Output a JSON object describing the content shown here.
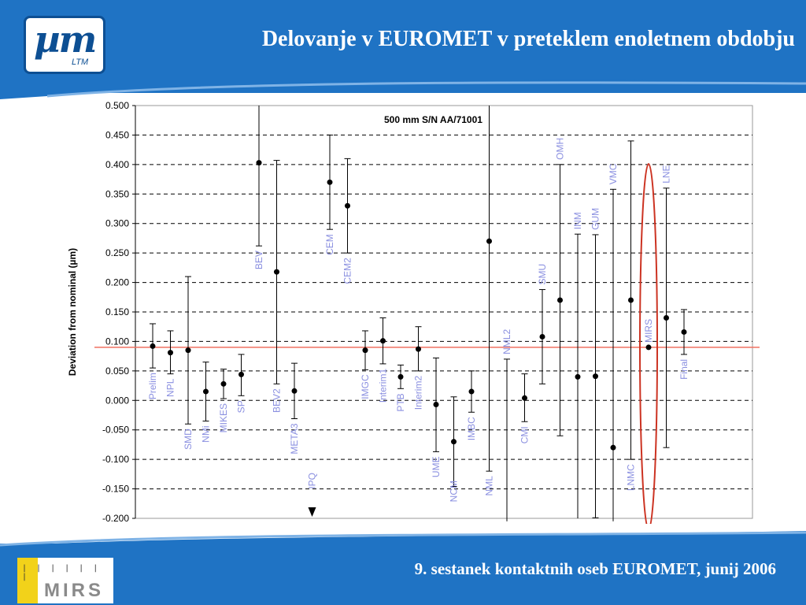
{
  "header": {
    "title": "Delovanje v EUROMET v preteklem enoletnem obdobju"
  },
  "logo": {
    "main": "µm",
    "sub": "LTM"
  },
  "footer": {
    "text": "9. sestanek kontaktnih oseb EUROMET, junij 2006"
  },
  "footer_logo": {
    "ticks": "| | | | | | |",
    "word": "MIRS"
  },
  "colors": {
    "brand_blue": "#1f73c4",
    "label_blue": "#8a8fe0",
    "ref_line": "#f07060",
    "ellipse": "#cc3322"
  },
  "chart_data": {
    "type": "scatter",
    "title": "500 mm S/N AA/71001",
    "xlabel": "",
    "ylabel": "Deviation from nominal (µm)",
    "ylim": [
      -0.2,
      0.5
    ],
    "yticks": [
      "0.500",
      "0.450",
      "0.400",
      "0.350",
      "0.300",
      "0.250",
      "0.200",
      "0.150",
      "0.100",
      "0.050",
      "0.000",
      "-0.050",
      "-0.100",
      "-0.150",
      "-0.200"
    ],
    "grid": true,
    "reference_line": 0.09,
    "points": [
      {
        "label": "Prelim",
        "y": 0.092,
        "lo": 0.055,
        "hi": 0.13,
        "label_pos": "below"
      },
      {
        "label": "NPL",
        "y": 0.081,
        "lo": 0.045,
        "hi": 0.118,
        "label_pos": "below"
      },
      {
        "label": "SMD",
        "y": 0.085,
        "lo": -0.04,
        "hi": 0.21,
        "label_pos": "below"
      },
      {
        "label": "NMi",
        "y": 0.015,
        "lo": -0.035,
        "hi": 0.065,
        "label_pos": "below"
      },
      {
        "label": "MIKES",
        "y": 0.028,
        "lo": 0.003,
        "hi": 0.053,
        "label_pos": "below"
      },
      {
        "label": "SP",
        "y": 0.044,
        "lo": 0.008,
        "hi": 0.078,
        "label_pos": "below"
      },
      {
        "label": "BEV",
        "y": 0.403,
        "lo": 0.262,
        "hi": 0.5,
        "label_pos": "below"
      },
      {
        "label": "BEV2",
        "y": 0.218,
        "lo": 0.028,
        "hi": 0.407,
        "label_pos": "below"
      },
      {
        "label": "META3",
        "y": 0.016,
        "lo": -0.031,
        "hi": 0.063,
        "label_pos": "below"
      },
      {
        "label": "IPQ",
        "y": null,
        "lo": null,
        "hi": null,
        "label_pos": "below",
        "offscale": true
      },
      {
        "label": "CEM",
        "y": 0.37,
        "lo": 0.29,
        "hi": 0.45,
        "label_pos": "below"
      },
      {
        "label": "CEM2",
        "y": 0.33,
        "lo": 0.25,
        "hi": 0.41,
        "label_pos": "below"
      },
      {
        "label": "IMGC",
        "y": 0.085,
        "lo": 0.052,
        "hi": 0.118,
        "label_pos": "below"
      },
      {
        "label": "Interim1",
        "y": 0.101,
        "lo": 0.062,
        "hi": 0.14,
        "label_pos": "below"
      },
      {
        "label": "PTB",
        "y": 0.04,
        "lo": 0.02,
        "hi": 0.06,
        "label_pos": "below"
      },
      {
        "label": "Interim2",
        "y": 0.087,
        "lo": 0.05,
        "hi": 0.125,
        "label_pos": "below"
      },
      {
        "label": "UME",
        "y": -0.007,
        "lo": -0.087,
        "hi": 0.072,
        "label_pos": "below"
      },
      {
        "label": "NCM",
        "y": -0.07,
        "lo": -0.146,
        "hi": 0.006,
        "label_pos": "below"
      },
      {
        "label": "IMBC",
        "y": 0.015,
        "lo": -0.02,
        "hi": 0.05,
        "label_pos": "below"
      },
      {
        "label": "NML",
        "y": 0.27,
        "lo": -0.12,
        "hi": 0.5,
        "label_pos": "below"
      },
      {
        "label": "NML2",
        "y": null,
        "lo": -0.205,
        "hi": 0.07,
        "label_pos": "above"
      },
      {
        "label": "CMI",
        "y": 0.004,
        "lo": -0.036,
        "hi": 0.045,
        "label_pos": "below"
      },
      {
        "label": "SMU",
        "y": 0.108,
        "lo": 0.028,
        "hi": 0.188,
        "label_pos": "above"
      },
      {
        "label": "OMH",
        "y": 0.17,
        "lo": -0.06,
        "hi": 0.4,
        "label_pos": "above"
      },
      {
        "label": "INM",
        "y": 0.04,
        "lo": -0.2,
        "hi": 0.282,
        "label_pos": "above"
      },
      {
        "label": "GUM",
        "y": 0.041,
        "lo": -0.199,
        "hi": 0.281,
        "label_pos": "above"
      },
      {
        "label": "VMC",
        "y": -0.08,
        "lo": -0.205,
        "hi": 0.358,
        "label_pos": "above"
      },
      {
        "label": "LNMC",
        "y": 0.17,
        "lo": -0.1,
        "hi": 0.44,
        "label_pos": "below"
      },
      {
        "label": "MIRS",
        "y": 0.09,
        "lo": null,
        "hi": null,
        "label_pos": "above"
      },
      {
        "label": "LNE",
        "y": 0.14,
        "lo": -0.08,
        "hi": 0.36,
        "label_pos": "above"
      },
      {
        "label": "Final",
        "y": 0.116,
        "lo": 0.078,
        "hi": 0.154,
        "label_pos": "below"
      }
    ]
  }
}
